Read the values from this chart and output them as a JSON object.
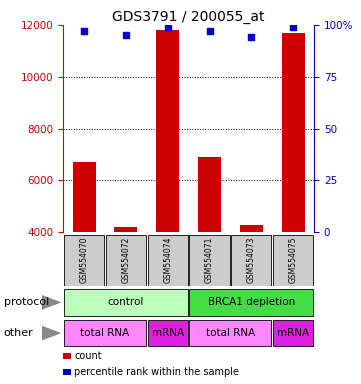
{
  "title": "GDS3791 / 200055_at",
  "samples": [
    "GSM554070",
    "GSM554072",
    "GSM554074",
    "GSM554071",
    "GSM554073",
    "GSM554075"
  ],
  "counts": [
    6700,
    4200,
    11800,
    6900,
    4300,
    11700
  ],
  "percentile_ranks": [
    97,
    95,
    99,
    97,
    94,
    99
  ],
  "ylim_left": [
    4000,
    12000
  ],
  "ylim_right": [
    0,
    100
  ],
  "yticks_left": [
    4000,
    6000,
    8000,
    10000,
    12000
  ],
  "yticks_right": [
    0,
    25,
    50,
    75,
    100
  ],
  "bar_color": "#cc0000",
  "dot_color": "#0000cc",
  "bar_width": 0.55,
  "protocol_ctrl_color": "#bbffbb",
  "protocol_brca_color": "#44dd44",
  "other_trna_color": "#ff88ff",
  "other_mrna_color": "#dd22dd",
  "sample_box_color": "#cccccc",
  "left_axis_color": "#cc0000",
  "right_axis_color": "#0000cc",
  "legend_items": [
    {
      "color": "#cc0000",
      "label": "count"
    },
    {
      "color": "#0000cc",
      "label": "percentile rank within the sample"
    }
  ],
  "label_protocol": "protocol",
  "label_other": "other",
  "title_fontsize": 10,
  "tick_fontsize": 7.5,
  "sample_fontsize": 5.5,
  "row_label_fontsize": 8,
  "cell_fontsize": 7.5,
  "legend_fontsize": 7
}
